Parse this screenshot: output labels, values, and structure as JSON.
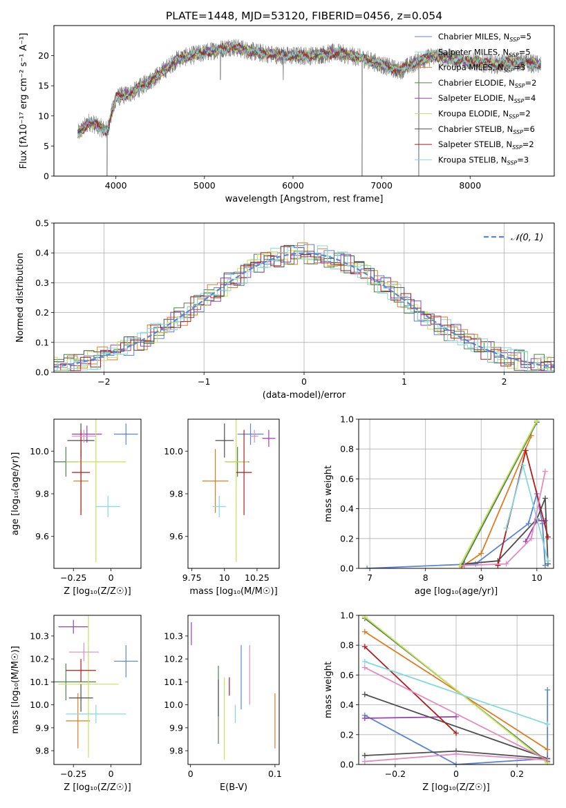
{
  "title": "PLATE=1448, MJD=53120, FIBERID=0456, z=0.054",
  "colors": {
    "blue": "#5b84d6",
    "orange": "#e07a1f",
    "green": "#4f7f4f",
    "purple": "#9b3fb5",
    "lime": "#c6e25a",
    "gray": "#4d4d4d",
    "red": "#b01a1a",
    "cyan": "#82d9de",
    "pink": "#e58abf",
    "spectrum": "#777777"
  },
  "chart_data": [
    {
      "id": "spectrum",
      "type": "line",
      "xlabel": "wavelength [Angstrom, rest frame]",
      "ylabel": "Flux [fλ10⁻¹⁷ erg cm⁻² s⁻¹ A⁻¹]",
      "xlim": [
        3300,
        8950
      ],
      "ylim": [
        0,
        25
      ],
      "xticks": [
        4000,
        5000,
        6000,
        7000,
        8000
      ],
      "yticks": [
        0,
        5,
        10,
        15,
        20
      ],
      "legend_position": "upper-right",
      "legend": [
        {
          "label": "Chabrier MILES, N_SSP=5",
          "color": "blue"
        },
        {
          "label": "Salpeter MILES, N_SSP=5",
          "color": "cyan"
        },
        {
          "label": "Kroupa MILES, N_SSP=3",
          "color": "orange"
        },
        {
          "label": "Chabrier ELODIE, N_SSP=2",
          "color": "green"
        },
        {
          "label": "Salpeter ELODIE, N_SSP=4",
          "color": "purple"
        },
        {
          "label": "Kroupa ELODIE, N_SSP=2",
          "color": "lime"
        },
        {
          "label": "Chabrier STELIB, N_SSP=6",
          "color": "gray"
        },
        {
          "label": "Salpeter STELIB, N_SSP=2",
          "color": "red"
        },
        {
          "label": "Kroupa STELIB, N_SSP=3",
          "color": "cyan"
        }
      ],
      "continuum": [
        [
          3570,
          7
        ],
        [
          3700,
          9
        ],
        [
          3900,
          7.5
        ],
        [
          4000,
          13
        ],
        [
          4200,
          14
        ],
        [
          4500,
          17
        ],
        [
          4700,
          19.5
        ],
        [
          5000,
          20.5
        ],
        [
          5300,
          21.5
        ],
        [
          5600,
          20.5
        ],
        [
          5900,
          20
        ],
        [
          6200,
          20
        ],
        [
          6500,
          20.5
        ],
        [
          6800,
          19.5
        ],
        [
          7000,
          18.5
        ],
        [
          7200,
          17.5
        ],
        [
          7400,
          19
        ],
        [
          7600,
          20
        ],
        [
          7800,
          19.5
        ],
        [
          8000,
          19
        ],
        [
          8300,
          18.5
        ],
        [
          8500,
          19
        ],
        [
          8800,
          18.5
        ]
      ],
      "spikes": [
        [
          3900,
          0
        ],
        [
          5180,
          16
        ],
        [
          5890,
          16
        ],
        [
          6780,
          0
        ],
        [
          7420,
          0
        ]
      ]
    },
    {
      "id": "residuals",
      "type": "histogram",
      "xlabel": "(data-model)/error",
      "ylabel": "Normed distribution",
      "xlim": [
        -2.5,
        2.5
      ],
      "ylim": [
        0,
        0.5
      ],
      "xticks": [
        -2,
        -1,
        0,
        1,
        2
      ],
      "yticks": [
        0.0,
        0.1,
        0.2,
        0.3,
        0.4,
        0.5
      ],
      "grid": true,
      "legend": [
        {
          "label": "𝒩(0, 1)",
          "color": "blue"
        }
      ],
      "legend_position": "upper-right",
      "bin_width": 0.1,
      "mean": 0,
      "sigma": 1
    },
    {
      "id": "age-vs-Z",
      "type": "errorbar",
      "xlabel": "Z [log₁₀(Z/Z☉)]",
      "ylabel": "age  [log₁₀(age/yr)]",
      "xlim": [
        -0.38,
        0.2
      ],
      "ylim": [
        9.45,
        10.15
      ],
      "xticks": [
        -0.25,
        0.0
      ],
      "yticks": [
        9.6,
        9.8,
        10.0
      ],
      "points": [
        {
          "color": "blue",
          "x": 0.1,
          "y": 10.08,
          "xe": 0.08,
          "ye": 0.05
        },
        {
          "color": "orange",
          "x": -0.2,
          "y": 9.86,
          "xe": 0.05,
          "ye": 0.15
        },
        {
          "color": "green",
          "x": -0.3,
          "y": 9.95,
          "xe": 0.08,
          "ye": 0.07
        },
        {
          "color": "purple",
          "x": -0.16,
          "y": 10.08,
          "xe": 0.1,
          "ye": 0.04
        },
        {
          "color": "lime",
          "x": -0.1,
          "y": 9.95,
          "xe": 0.2,
          "ye": 0.47
        },
        {
          "color": "gray",
          "x": -0.2,
          "y": 10.05,
          "xe": 0.09,
          "ye": 0.08
        },
        {
          "color": "red",
          "x": -0.2,
          "y": 9.9,
          "xe": 0.06,
          "ye": 0.2
        },
        {
          "color": "cyan",
          "x": -0.02,
          "y": 9.74,
          "xe": 0.08,
          "ye": 0.05
        },
        {
          "color": "pink",
          "x": -0.18,
          "y": 10.07,
          "xe": 0.08,
          "ye": 0.03
        }
      ]
    },
    {
      "id": "age-vs-mass",
      "type": "errorbar",
      "xlabel": "mass [log₁₀(M/M☉)]",
      "ylabel": "",
      "xlim": [
        9.72,
        10.42
      ],
      "ylim": [
        9.45,
        10.15
      ],
      "xticks": [
        9.75,
        10.0,
        10.25
      ],
      "yticks": [
        9.6,
        9.8,
        10.0
      ],
      "points": [
        {
          "color": "blue",
          "x": 10.2,
          "y": 10.08,
          "xe": 0.1,
          "ye": 0.05
        },
        {
          "color": "orange",
          "x": 9.93,
          "y": 9.86,
          "xe": 0.1,
          "ye": 0.15
        },
        {
          "color": "green",
          "x": 10.1,
          "y": 9.95,
          "xe": 0.09,
          "ye": 0.07
        },
        {
          "color": "purple",
          "x": 10.34,
          "y": 10.06,
          "xe": 0.05,
          "ye": 0.04
        },
        {
          "color": "lime",
          "x": 10.09,
          "y": 9.95,
          "xe": 0.09,
          "ye": 0.47
        },
        {
          "color": "gray",
          "x": 10.0,
          "y": 10.05,
          "xe": 0.07,
          "ye": 0.08
        },
        {
          "color": "red",
          "x": 10.15,
          "y": 9.9,
          "xe": 0.06,
          "ye": 0.2
        },
        {
          "color": "cyan",
          "x": 9.96,
          "y": 9.74,
          "xe": 0.05,
          "ye": 0.05
        },
        {
          "color": "pink",
          "x": 10.23,
          "y": 10.07,
          "xe": 0.03,
          "ye": 0.03
        }
      ]
    },
    {
      "id": "mass-weight-vs-age",
      "type": "line",
      "xlabel": "age  [log₁₀(age/yr)]",
      "ylabel": "mass weight",
      "xlim": [
        6.8,
        10.3
      ],
      "ylim": [
        0,
        1.0
      ],
      "xticks": [
        7,
        8,
        9,
        10
      ],
      "yticks": [
        0.0,
        0.2,
        0.4,
        0.6,
        0.8,
        1.0
      ],
      "grid": true,
      "series": [
        {
          "color": "blue",
          "points": [
            [
              6.95,
              0.0
            ],
            [
              8.9,
              0.03
            ],
            [
              9.85,
              0.3
            ],
            [
              10.0,
              0.5
            ],
            [
              10.1,
              0.3
            ],
            [
              10.15,
              0.02
            ]
          ]
        },
        {
          "color": "orange",
          "points": [
            [
              8.65,
              0.01
            ],
            [
              9.0,
              0.1
            ],
            [
              9.9,
              0.89
            ]
          ]
        },
        {
          "color": "green",
          "points": [
            [
              8.65,
              0.02
            ],
            [
              10.0,
              0.98
            ]
          ]
        },
        {
          "color": "purple",
          "points": [
            [
              9.8,
              0.18
            ],
            [
              10.0,
              0.32
            ],
            [
              10.15,
              0.32
            ]
          ]
        },
        {
          "color": "lime",
          "points": [
            [
              8.62,
              0.02
            ],
            [
              10.0,
              0.99
            ]
          ]
        },
        {
          "color": "gray",
          "points": [
            [
              8.7,
              0.03
            ],
            [
              9.3,
              0.05
            ],
            [
              10.0,
              0.33
            ],
            [
              10.15,
              0.47
            ],
            [
              10.2,
              0.03
            ]
          ]
        },
        {
          "color": "red",
          "points": [
            [
              9.3,
              0.02
            ],
            [
              9.8,
              0.79
            ],
            [
              10.2,
              0.21
            ]
          ]
        },
        {
          "color": "cyan",
          "points": [
            [
              9.45,
              0.27
            ],
            [
              9.75,
              0.69
            ],
            [
              10.2,
              0.05
            ]
          ]
        },
        {
          "color": "pink",
          "points": [
            [
              8.7,
              0.02
            ],
            [
              9.45,
              0.03
            ],
            [
              9.9,
              0.2
            ],
            [
              10.15,
              0.65
            ]
          ]
        }
      ]
    },
    {
      "id": "mass-vs-Z",
      "type": "errorbar",
      "xlabel": "Z [log₁₀(Z/Z☉)]",
      "ylabel": "mass [log₁₀(M/M☉)]",
      "xlim": [
        -0.38,
        0.2
      ],
      "ylim": [
        9.74,
        10.39
      ],
      "xticks": [
        -0.25,
        0.0
      ],
      "yticks": [
        9.8,
        9.9,
        10.0,
        10.1,
        10.2,
        10.3
      ],
      "points": [
        {
          "color": "blue",
          "x": 0.1,
          "y": 10.19,
          "xe": 0.08,
          "ye": 0.07
        },
        {
          "color": "orange",
          "x": -0.22,
          "y": 9.93,
          "xe": 0.08,
          "ye": 0.12
        },
        {
          "color": "green",
          "x": -0.3,
          "y": 10.1,
          "xe": 0.2,
          "ye": 0.08
        },
        {
          "color": "purple",
          "x": -0.25,
          "y": 10.34,
          "xe": 0.1,
          "ye": 0.03
        },
        {
          "color": "lime",
          "x": -0.15,
          "y": 10.09,
          "xe": 0.2,
          "ye": 0.32
        },
        {
          "color": "gray",
          "x": -0.2,
          "y": 10.03,
          "xe": 0.08,
          "ye": 0.06
        },
        {
          "color": "red",
          "x": -0.2,
          "y": 10.15,
          "xe": 0.1,
          "ye": 0.05
        },
        {
          "color": "cyan",
          "x": -0.1,
          "y": 9.96,
          "xe": 0.2,
          "ye": 0.04
        },
        {
          "color": "pink",
          "x": -0.18,
          "y": 10.23,
          "xe": 0.1,
          "ye": 0.04
        }
      ]
    },
    {
      "id": "mass-vs-ebv",
      "type": "errorbar",
      "xlabel": "E(B-V)",
      "ylabel": "",
      "xlim": [
        -0.003,
        0.105
      ],
      "ylim": [
        9.74,
        10.39
      ],
      "xticks": [
        0.0,
        0.1
      ],
      "yticks": [
        9.8,
        9.9,
        10.0,
        10.1,
        10.2,
        10.3
      ],
      "points": [
        {
          "color": "blue",
          "x": 0.06,
          "y": 10.12,
          "ye": 0.14
        },
        {
          "color": "orange",
          "x": 0.1,
          "y": 9.93,
          "ye": 0.12
        },
        {
          "color": "green",
          "x": 0.033,
          "y": 10.0,
          "ye": 0.17
        },
        {
          "color": "purple",
          "x": 0.001,
          "y": 10.31,
          "ye": 0.05
        },
        {
          "color": "lime",
          "x": 0.04,
          "y": 9.94,
          "ye": 0.18
        },
        {
          "color": "gray",
          "x": 0.033,
          "y": 10.03,
          "ye": 0.08
        },
        {
          "color": "red",
          "x": 0.046,
          "y": 10.08,
          "ye": 0.04
        },
        {
          "color": "cyan",
          "x": 0.053,
          "y": 9.96,
          "ye": 0.04
        },
        {
          "color": "pink",
          "x": 0.07,
          "y": 10.13,
          "ye": 0.13
        }
      ]
    },
    {
      "id": "mass-weight-vs-Z",
      "type": "line",
      "xlabel": "Z [log₁₀(Z/Z☉)]",
      "ylabel": "mass weight",
      "xlim": [
        -0.32,
        0.32
      ],
      "ylim": [
        0,
        1.0
      ],
      "xticks": [
        -0.2,
        0.0,
        0.2
      ],
      "yticks": [
        0.0,
        0.2,
        0.4,
        0.6,
        0.8,
        1.0
      ],
      "grid": true,
      "series": [
        {
          "color": "blue",
          "points": [
            [
              -0.3,
              0.33
            ],
            [
              0.0,
              0.0
            ],
            [
              0.3,
              0.04
            ],
            [
              0.3,
              0.5
            ]
          ]
        },
        {
          "color": "orange",
          "points": [
            [
              -0.3,
              0.89
            ],
            [
              0.3,
              0.1
            ]
          ]
        },
        {
          "color": "green",
          "points": [
            [
              -0.3,
              0.98
            ],
            [
              0.3,
              0.02
            ]
          ]
        },
        {
          "color": "purple",
          "points": [
            [
              -0.3,
              0.31
            ],
            [
              0.0,
              0.32
            ]
          ]
        },
        {
          "color": "lime",
          "points": [
            [
              -0.3,
              0.99
            ],
            [
              0.3,
              0.01
            ]
          ]
        },
        {
          "color": "gray",
          "points": [
            [
              -0.3,
              0.06
            ],
            [
              0.0,
              0.09
            ],
            [
              0.3,
              0.04
            ],
            [
              -0.3,
              0.47
            ]
          ]
        },
        {
          "color": "red",
          "points": [
            [
              -0.3,
              0.79
            ],
            [
              0.0,
              0.21
            ]
          ]
        },
        {
          "color": "cyan",
          "points": [
            [
              -0.3,
              0.69
            ],
            [
              0.3,
              0.27
            ]
          ]
        },
        {
          "color": "pink",
          "points": [
            [
              -0.3,
              0.02
            ],
            [
              0.0,
              0.07
            ],
            [
              0.3,
              0.03
            ],
            [
              -0.3,
              0.65
            ]
          ]
        }
      ]
    }
  ]
}
